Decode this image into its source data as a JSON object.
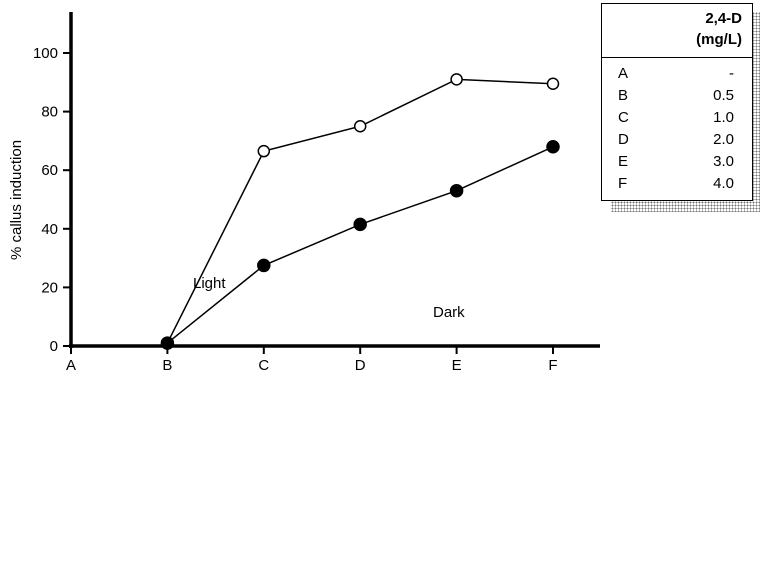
{
  "chart_data": {
    "type": "line",
    "title": "",
    "xlabel": "",
    "ylabel": "% callus induction",
    "categories": [
      "A",
      "B",
      "C",
      "D",
      "E",
      "F"
    ],
    "ylim": [
      0,
      100
    ],
    "yticks": [
      0,
      20,
      40,
      60,
      80,
      100
    ],
    "grid": false,
    "series": [
      {
        "name": "Light",
        "marker": "open-circle",
        "x": [
          "B",
          "C",
          "D",
          "E",
          "F"
        ],
        "values": [
          1,
          66.5,
          75,
          91,
          89.5
        ]
      },
      {
        "name": "Dark",
        "marker": "filled-circle",
        "x": [
          "B",
          "C",
          "D",
          "E",
          "F"
        ],
        "values": [
          1,
          27.5,
          41.5,
          53,
          68
        ]
      }
    ],
    "legend": {
      "placement": "top-right",
      "header_line1": "2,4-D",
      "header_line2": "(mg/L)",
      "rows": [
        {
          "key": "A",
          "value": "-"
        },
        {
          "key": "B",
          "value": "0.5"
        },
        {
          "key": "C",
          "value": "1.0"
        },
        {
          "key": "D",
          "value": "2.0"
        },
        {
          "key": "E",
          "value": "3.0"
        },
        {
          "key": "F",
          "value": "4.0"
        }
      ]
    }
  }
}
